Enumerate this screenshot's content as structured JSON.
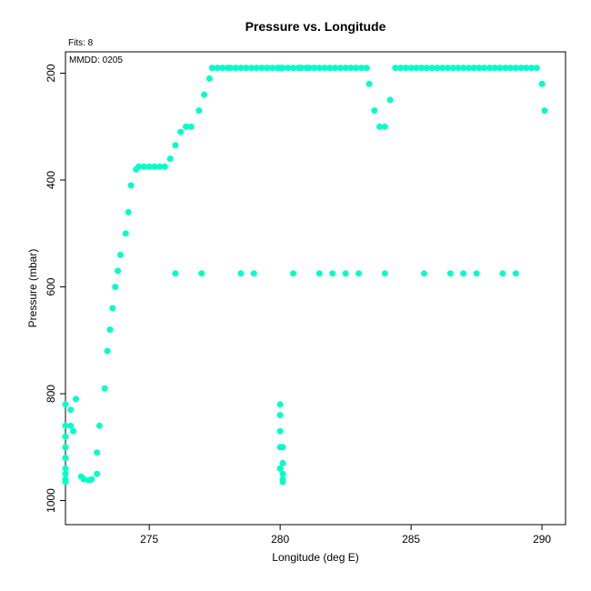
{
  "chart_data": {
    "type": "scatter",
    "title": "Pressure vs. Longitude",
    "xlabel": "Longitude (deg E)",
    "ylabel": "Pressure (mbar)",
    "xlim": [
      271.8,
      290.9
    ],
    "ylim": [
      1045,
      160
    ],
    "y_inverted": true,
    "xticks": [
      275,
      280,
      285,
      290
    ],
    "yticks": [
      200,
      400,
      600,
      800,
      1000
    ],
    "grid": false,
    "legend": "none",
    "point_color": "#00FFC8",
    "annotations": {
      "fits": "Fits: 8",
      "date": "MMDD: 0205"
    },
    "x": [
      271.8,
      271.8,
      271.8,
      271.8,
      271.8,
      271.8,
      271.8,
      271.8,
      271.8,
      272.0,
      272.0,
      272.1,
      272.2,
      272.4,
      272.5,
      272.7,
      272.8,
      273.0,
      273.0,
      273.1,
      273.3,
      273.4,
      273.5,
      273.6,
      273.7,
      273.8,
      273.9,
      274.1,
      274.2,
      274.3,
      274.5,
      274.6,
      274.8,
      275.0,
      275.2,
      275.4,
      275.6,
      275.8,
      276.0,
      276.2,
      276.4,
      276.6,
      276.9,
      277.1,
      277.3,
      277.4,
      277.6,
      277.8,
      278.0,
      278.1,
      278.3,
      278.5,
      278.7,
      278.9,
      279.1,
      279.3,
      279.5,
      279.7,
      279.9,
      280.0,
      280.1,
      280.3,
      280.5,
      280.7,
      280.8,
      281.0,
      281.1,
      281.3,
      281.5,
      281.7,
      281.9,
      282.1,
      282.3,
      282.5,
      282.7,
      282.9,
      283.1,
      283.3,
      283.4,
      283.6,
      283.8,
      284.0,
      284.2,
      284.4,
      284.6,
      284.8,
      285.0,
      285.2,
      285.4,
      285.6,
      285.8,
      286.0,
      286.2,
      286.4,
      286.6,
      286.8,
      287.0,
      287.2,
      287.4,
      287.6,
      287.8,
      288.0,
      288.2,
      288.4,
      288.6,
      288.8,
      289.0,
      289.2,
      289.4,
      289.6,
      289.8,
      290.0,
      290.1,
      280.0,
      280.0,
      280.0,
      280.0,
      280.0,
      280.1,
      280.1,
      280.1,
      280.1,
      280.1,
      276.0,
      277.0,
      278.5,
      279.0,
      280.5,
      281.5,
      282.0,
      282.5,
      283.0,
      284.0,
      285.5,
      286.5,
      287.0,
      287.5,
      288.5,
      289.0
    ],
    "y": [
      820,
      860,
      880,
      900,
      920,
      940,
      950,
      960,
      965,
      830,
      860,
      870,
      810,
      955,
      960,
      962,
      960,
      950,
      910,
      860,
      790,
      720,
      680,
      640,
      600,
      570,
      540,
      500,
      460,
      410,
      380,
      375,
      375,
      375,
      375,
      375,
      375,
      360,
      335,
      310,
      300,
      300,
      270,
      240,
      210,
      190,
      190,
      190,
      190,
      190,
      190,
      190,
      190,
      190,
      190,
      190,
      190,
      190,
      190,
      190,
      190,
      190,
      190,
      190,
      190,
      190,
      190,
      190,
      190,
      190,
      190,
      190,
      190,
      190,
      190,
      190,
      190,
      190,
      220,
      270,
      300,
      300,
      250,
      190,
      190,
      190,
      190,
      190,
      190,
      190,
      190,
      190,
      190,
      190,
      190,
      190,
      190,
      190,
      190,
      190,
      190,
      190,
      190,
      190,
      190,
      190,
      190,
      190,
      190,
      190,
      190,
      220,
      270,
      820,
      840,
      870,
      900,
      940,
      960,
      965,
      950,
      930,
      900,
      575,
      575,
      575,
      575,
      575,
      575,
      575,
      575,
      575,
      575,
      575,
      575,
      575,
      575,
      575,
      575
    ]
  }
}
